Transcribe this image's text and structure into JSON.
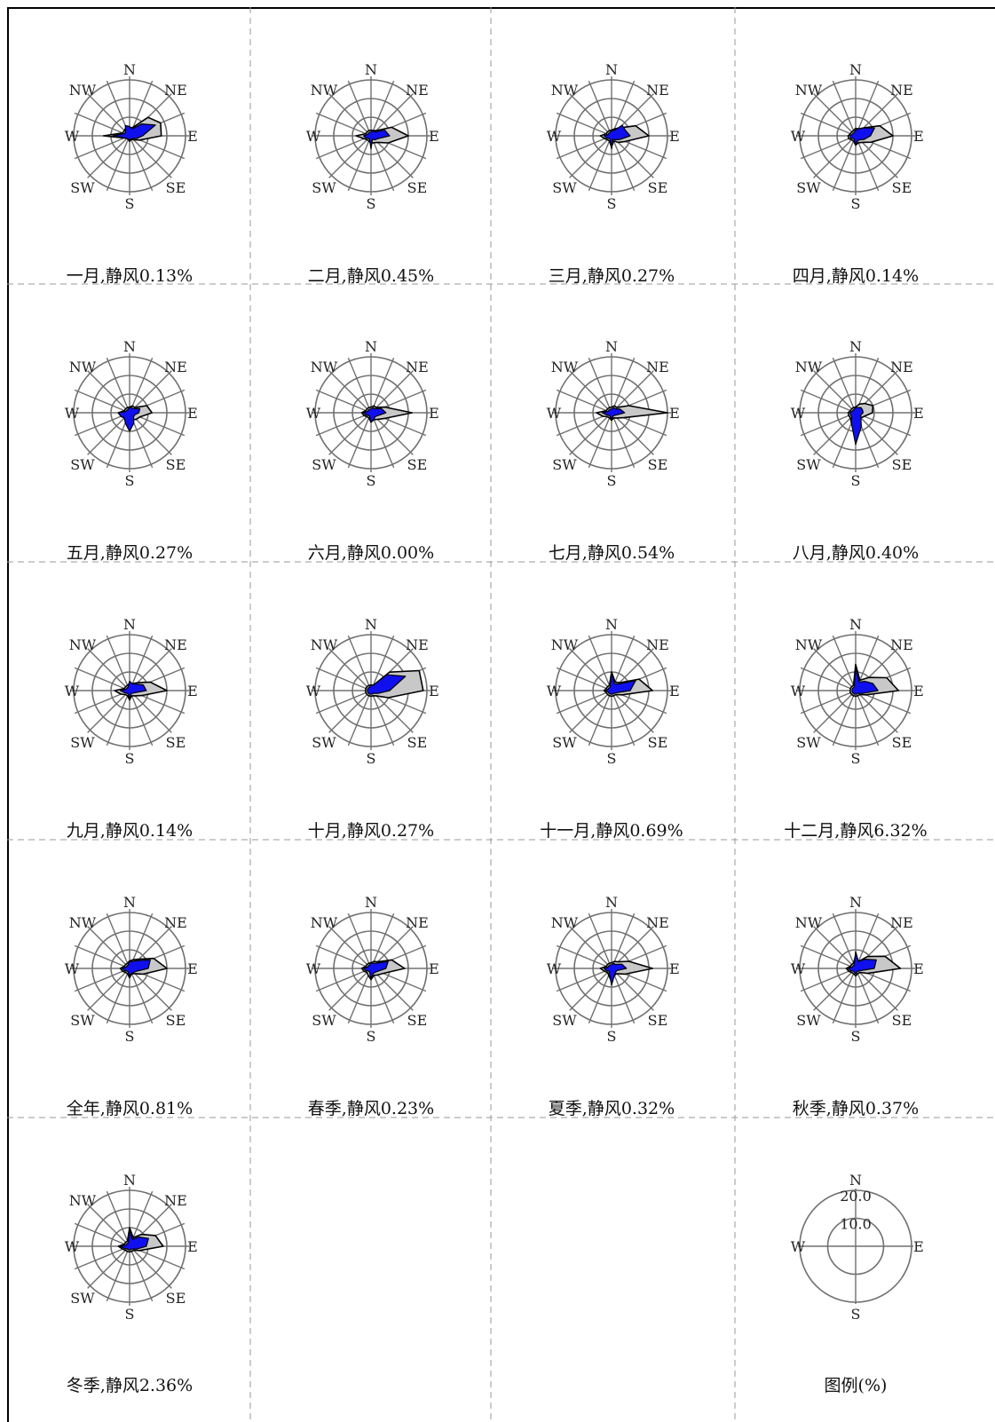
{
  "directions": [
    "N",
    "NNE",
    "NE",
    "ENE",
    "E",
    "ESE",
    "SE",
    "SSE",
    "S",
    "SSW",
    "SW",
    "WSW",
    "W",
    "WNW",
    "NW",
    "NNW"
  ],
  "direction_labels": {
    "N": "N",
    "NE": "NE",
    "E": "E",
    "SE": "SE",
    "S": "S",
    "SW": "SW",
    "W": "W",
    "NW": "NW"
  },
  "colors": {
    "frequency_fill": "#c8c8c8",
    "speed_fill": "#1010ee",
    "outline": "#000000",
    "grid": "#707070",
    "divider": "#9a9a9a"
  },
  "legend": {
    "caption": "图例(%)",
    "rings": [
      10.0,
      20.0
    ],
    "ring_labels": [
      "10.0",
      "20.0"
    ],
    "labels": {
      "N": "N",
      "E": "E",
      "S": "S",
      "W": "W"
    }
  },
  "chart_data": [
    {
      "type": "radar",
      "caption": "一月,静风0.13%",
      "frequency": [
        4,
        5,
        14,
        18,
        17,
        6,
        3,
        2,
        3,
        2,
        2,
        3,
        14,
        4,
        4,
        5
      ],
      "speed": [
        5,
        4,
        9,
        15,
        7,
        4,
        2,
        2,
        2,
        2,
        2,
        3,
        9,
        3,
        3,
        6
      ]
    },
    {
      "type": "radar",
      "caption": "二月,静风0.45%",
      "frequency": [
        3,
        3,
        4,
        12,
        20,
        10,
        5,
        4,
        4,
        3,
        3,
        4,
        8,
        3,
        3,
        3
      ],
      "speed": [
        2,
        3,
        3,
        8,
        10,
        4,
        3,
        2,
        7,
        2,
        2,
        3,
        4,
        2,
        2,
        2
      ]
    },
    {
      "type": "radar",
      "caption": "三月,静风0.27%",
      "frequency": [
        3,
        4,
        6,
        14,
        20,
        8,
        5,
        3,
        6,
        3,
        3,
        4,
        6,
        3,
        3,
        3
      ],
      "speed": [
        3,
        3,
        8,
        8,
        10,
        5,
        3,
        2,
        7,
        2,
        2,
        3,
        4,
        2,
        2,
        2
      ]
    },
    {
      "type": "radar",
      "caption": "四月,静风0.14%",
      "frequency": [
        4,
        4,
        6,
        14,
        20,
        9,
        5,
        4,
        5,
        3,
        3,
        4,
        4,
        3,
        3,
        3
      ],
      "speed": [
        3,
        4,
        6,
        11,
        8,
        5,
        3,
        3,
        5,
        2,
        2,
        3,
        3,
        2,
        2,
        2
      ]
    },
    {
      "type": "radar",
      "caption": "五月,静风0.27%",
      "frequency": [
        3,
        4,
        4,
        10,
        12,
        6,
        5,
        4,
        8,
        5,
        4,
        5,
        6,
        3,
        3,
        3
      ],
      "speed": [
        3,
        3,
        3,
        6,
        5,
        3,
        3,
        6,
        10,
        6,
        4,
        5,
        6,
        2,
        2,
        2
      ]
    },
    {
      "type": "radar",
      "caption": "六月,静风0.00%",
      "frequency": [
        3,
        4,
        4,
        8,
        22,
        8,
        5,
        4,
        5,
        3,
        3,
        4,
        5,
        3,
        3,
        3
      ],
      "speed": [
        2,
        3,
        3,
        6,
        8,
        4,
        3,
        4,
        5,
        2,
        2,
        3,
        4,
        2,
        2,
        2
      ]
    },
    {
      "type": "radar",
      "caption": "七月,静风0.54%",
      "frequency": [
        3,
        4,
        4,
        10,
        30,
        7,
        4,
        3,
        4,
        3,
        3,
        5,
        8,
        3,
        3,
        3
      ],
      "speed": [
        2,
        3,
        3,
        5,
        7,
        3,
        2,
        2,
        4,
        2,
        2,
        3,
        5,
        2,
        2,
        2
      ]
    },
    {
      "type": "radar",
      "caption": "八月,静风0.40%",
      "frequency": [
        3,
        5,
        7,
        10,
        9,
        5,
        4,
        6,
        12,
        6,
        4,
        4,
        4,
        3,
        3,
        3
      ],
      "speed": [
        3,
        3,
        4,
        4,
        4,
        3,
        4,
        8,
        17,
        6,
        3,
        3,
        3,
        2,
        2,
        2
      ]
    },
    {
      "type": "radar",
      "caption": "九月,静风0.14%",
      "frequency": [
        4,
        4,
        6,
        12,
        20,
        7,
        4,
        3,
        5,
        3,
        3,
        5,
        8,
        3,
        3,
        3
      ],
      "speed": [
        5,
        4,
        5,
        8,
        9,
        3,
        2,
        2,
        4,
        2,
        2,
        3,
        5,
        2,
        2,
        2
      ]
    },
    {
      "type": "radar",
      "caption": "十月,静风0.27%",
      "frequency": [
        3,
        3,
        14,
        28,
        28,
        10,
        4,
        3,
        3,
        3,
        3,
        3,
        3,
        3,
        3,
        3
      ],
      "speed": [
        3,
        3,
        12,
        20,
        10,
        4,
        2,
        2,
        2,
        2,
        2,
        2,
        2,
        2,
        2,
        2
      ]
    },
    {
      "type": "radar",
      "caption": "十一月,静风0.69%",
      "frequency": [
        10,
        5,
        6,
        16,
        22,
        6,
        3,
        3,
        3,
        3,
        3,
        3,
        4,
        3,
        3,
        3
      ],
      "speed": [
        10,
        4,
        5,
        14,
        10,
        3,
        2,
        2,
        2,
        2,
        2,
        2,
        3,
        2,
        2,
        2
      ]
    },
    {
      "type": "radar",
      "caption": "十二月,静风6.32%",
      "frequency": [
        14,
        6,
        10,
        18,
        23,
        6,
        3,
        3,
        3,
        3,
        3,
        3,
        3,
        3,
        3,
        3
      ],
      "speed": [
        13,
        5,
        7,
        10,
        12,
        4,
        2,
        2,
        2,
        2,
        2,
        2,
        2,
        2,
        2,
        2
      ]
    },
    {
      "type": "radar",
      "caption": "全年,静风0.81%",
      "frequency": [
        4,
        5,
        7,
        14,
        20,
        8,
        4,
        3,
        5,
        3,
        3,
        4,
        5,
        3,
        3,
        3
      ],
      "speed": [
        4,
        4,
        6,
        12,
        10,
        4,
        3,
        3,
        4,
        2,
        2,
        3,
        4,
        2,
        2,
        2
      ]
    },
    {
      "type": "radar",
      "caption": "春季,静风0.23%",
      "frequency": [
        3,
        4,
        5,
        12,
        18,
        7,
        5,
        4,
        6,
        4,
        3,
        4,
        5,
        3,
        3,
        3
      ],
      "speed": [
        3,
        3,
        4,
        10,
        8,
        4,
        3,
        3,
        6,
        2,
        2,
        3,
        4,
        2,
        2,
        2
      ]
    },
    {
      "type": "radar",
      "caption": "夏季,静风0.32%",
      "frequency": [
        3,
        4,
        5,
        10,
        22,
        8,
        4,
        4,
        7,
        4,
        3,
        4,
        6,
        3,
        3,
        3
      ],
      "speed": [
        2,
        3,
        3,
        6,
        8,
        3,
        3,
        4,
        9,
        3,
        2,
        3,
        4,
        2,
        2,
        2
      ]
    },
    {
      "type": "radar",
      "caption": "秋季,静风0.37%",
      "frequency": [
        7,
        4,
        9,
        17,
        24,
        7,
        3,
        3,
        4,
        3,
        3,
        4,
        5,
        3,
        3,
        3
      ],
      "speed": [
        9,
        4,
        7,
        12,
        10,
        3,
        2,
        2,
        3,
        2,
        2,
        3,
        4,
        2,
        2,
        2
      ]
    },
    {
      "type": "radar",
      "caption": "冬季,静风2.36%",
      "frequency": [
        10,
        5,
        9,
        15,
        18,
        6,
        3,
        3,
        3,
        3,
        3,
        4,
        6,
        3,
        3,
        3
      ],
      "speed": [
        9,
        4,
        7,
        11,
        9,
        4,
        2,
        2,
        2,
        2,
        2,
        3,
        5,
        2,
        2,
        2
      ]
    }
  ]
}
